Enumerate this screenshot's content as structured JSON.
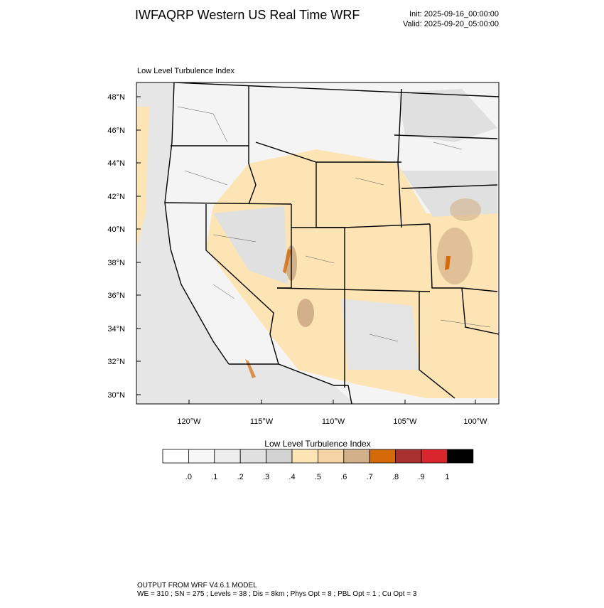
{
  "header": {
    "title": "IWFAQRP Western US Real Time WRF",
    "init": "Init: 2025-09-16_00:00:00",
    "valid": "Valid: 2025-09-20_05:00:00"
  },
  "map": {
    "title": "Low Level Turbulence Index",
    "lat_labels": [
      "48°N",
      "46°N",
      "44°N",
      "42°N",
      "40°N",
      "38°N",
      "36°N",
      "34°N",
      "32°N",
      "30°N"
    ],
    "lon_labels": [
      "120°W",
      "115°W",
      "110°W",
      "105°W",
      "100°W"
    ]
  },
  "colorbar": {
    "title": "Low Level Turbulence Index",
    "colors": [
      "#ffffff",
      "#f7f7f7",
      "#eeeeee",
      "#e0e0e0",
      "#d2d2d2",
      "#fde4b4",
      "#f6d3a4",
      "#d2b08a",
      "#d46a08",
      "#a8302e",
      "#d8262c",
      "#000000"
    ],
    "labels": [
      ".0",
      ".1",
      ".2",
      ".3",
      ".4",
      ".5",
      ".6",
      ".7",
      ".8",
      ".9",
      "1"
    ]
  },
  "footer": {
    "line1": "OUTPUT FROM WRF V4.6.1 MODEL",
    "line2": "WE = 310 ; SN = 275 ; Levels = 38 ; Dis = 8km ; Phys Opt = 8 ; PBL Opt = 1 ; Cu Opt = 3"
  }
}
